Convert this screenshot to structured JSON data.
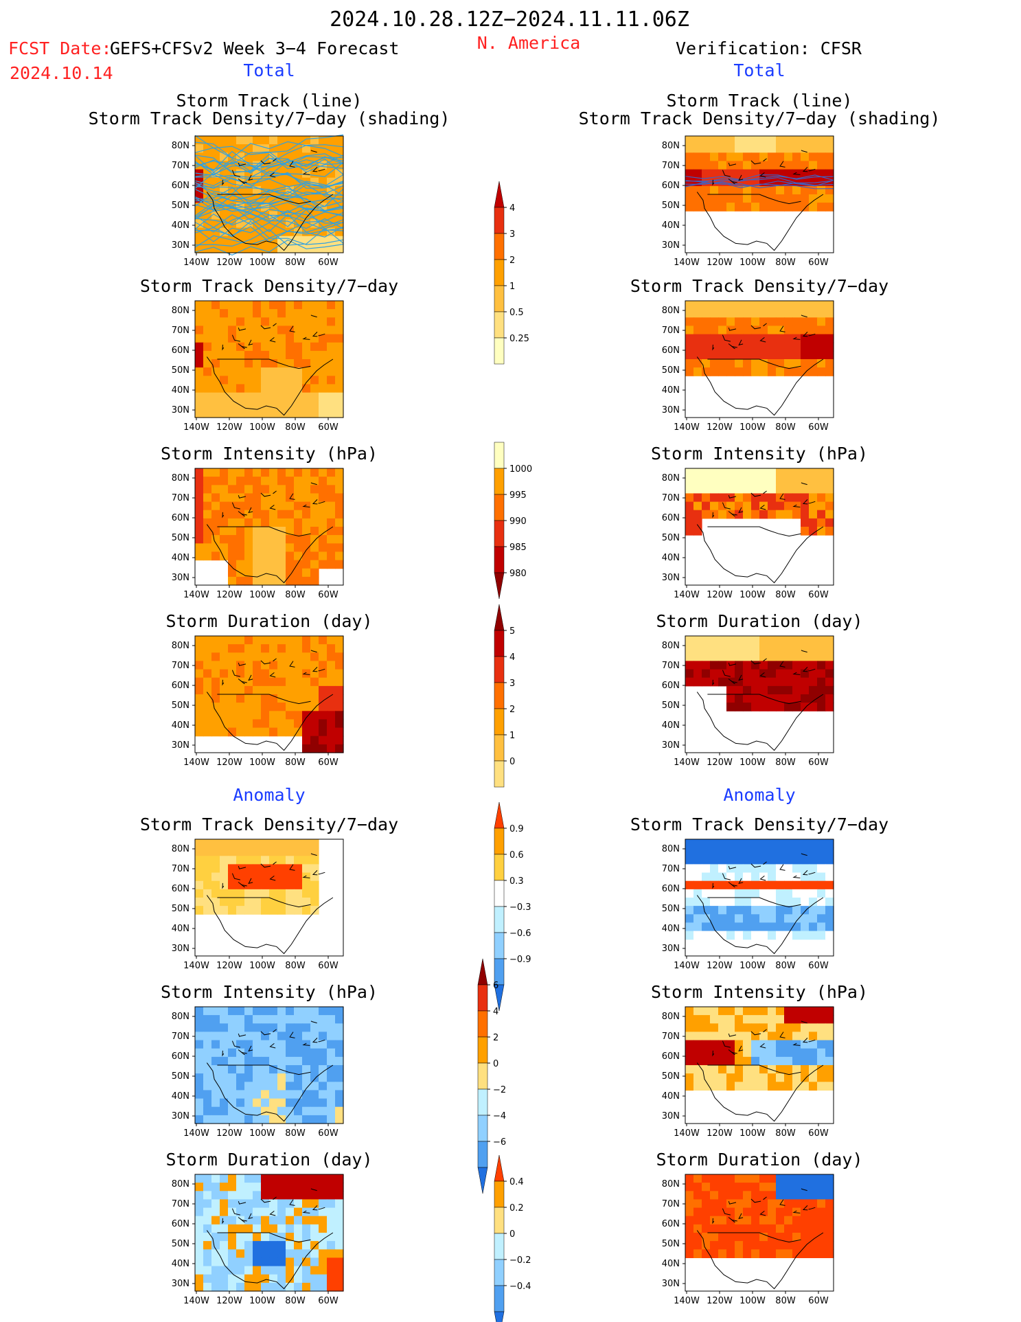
{
  "header": {
    "period": "2024.10.28.12Z−2024.11.11.06Z",
    "fcst_label": "FCST Date:",
    "model": "GEFS+CFSv2 Week 3−4 Forecast",
    "date": "2024.10.14",
    "region": "N. America",
    "verification": "Verification: CFSR"
  },
  "sections": {
    "total": "Total",
    "anomaly": "Anomaly"
  },
  "titles": {
    "track1a": "Storm Track (line)",
    "track1b": "Storm Track Density/7−day (shading)",
    "density": "Storm Track Density/7−day",
    "intensity": "Storm Intensity (hPa)",
    "duration": "Storm Duration (day)"
  },
  "axes": {
    "lat_ticks": [
      "80N",
      "70N",
      "60N",
      "50N",
      "40N",
      "30N"
    ],
    "lon_ticks": [
      "140W",
      "120W",
      "100W",
      "80W",
      "60W"
    ]
  },
  "colors": {
    "yellow_pale": "#ffffc0",
    "yellow": "#ffe080",
    "gold": "#ffc040",
    "orange": "#ffa000",
    "orange_red": "#ff7000",
    "red": "#e83010",
    "dark_red": "#c00000",
    "maroon": "#900000",
    "light_cyan": "#c0f0ff",
    "light_blue": "#90d0ff",
    "mid_blue": "#50a0f0",
    "blue": "#2070e0",
    "storm_line_forecast": "#30a0e0",
    "storm_line_verify": "#4060c0"
  },
  "chart_data": [
    {
      "type": "heatmap",
      "id": "fc-track",
      "panel": "forecast",
      "title": "Storm Track (line) / Storm Track Density/7−day (shading)",
      "colorbar": "density"
    },
    {
      "type": "heatmap",
      "id": "ob-track",
      "panel": "verification",
      "title": "Storm Track (line) / Storm Track Density/7−day (shading)",
      "colorbar": "density"
    },
    {
      "type": "heatmap",
      "id": "fc-density",
      "panel": "forecast",
      "title": "Storm Track Density/7−day",
      "colorbar": "density"
    },
    {
      "type": "heatmap",
      "id": "ob-density",
      "panel": "verification",
      "title": "Storm Track Density/7−day",
      "colorbar": "density"
    },
    {
      "type": "heatmap",
      "id": "fc-intensity",
      "panel": "forecast",
      "title": "Storm Intensity (hPa)",
      "colorbar": "intensity"
    },
    {
      "type": "heatmap",
      "id": "ob-intensity",
      "panel": "verification",
      "title": "Storm Intensity (hPa)",
      "colorbar": "intensity"
    },
    {
      "type": "heatmap",
      "id": "fc-duration",
      "panel": "forecast",
      "title": "Storm Duration (day)",
      "colorbar": "duration"
    },
    {
      "type": "heatmap",
      "id": "ob-duration",
      "panel": "verification",
      "title": "Storm Duration (day)",
      "colorbar": "duration"
    },
    {
      "type": "heatmap",
      "id": "fc-density-anom",
      "panel": "forecast",
      "title": "Storm Track Density/7−day",
      "colorbar": "density_anom"
    },
    {
      "type": "heatmap",
      "id": "ob-density-anom",
      "panel": "verification",
      "title": "Storm Track Density/7−day",
      "colorbar": "density_anom"
    },
    {
      "type": "heatmap",
      "id": "fc-intensity-anom",
      "panel": "forecast",
      "title": "Storm Intensity (hPa)",
      "colorbar": "intensity_anom"
    },
    {
      "type": "heatmap",
      "id": "ob-intensity-anom",
      "panel": "verification",
      "title": "Storm Intensity (hPa)",
      "colorbar": "intensity_anom"
    },
    {
      "type": "heatmap",
      "id": "fc-duration-anom",
      "panel": "forecast",
      "title": "Storm Duration (day)",
      "colorbar": "duration_anom"
    },
    {
      "type": "heatmap",
      "id": "ob-duration-anom",
      "panel": "verification",
      "title": "Storm Duration (day)",
      "colorbar": "duration_anom"
    }
  ],
  "colorbars": {
    "density": {
      "labels": [
        "4",
        "3",
        "2",
        "1",
        "0.5",
        "0.25"
      ],
      "colors": [
        "#c00000",
        "#e83010",
        "#ff7000",
        "#ffa000",
        "#ffc040",
        "#ffe080",
        "#ffffc0"
      ]
    },
    "intensity": {
      "labels": [
        "1000",
        "995",
        "990",
        "985",
        "980"
      ],
      "colors": [
        "#ffffc0",
        "#ffa000",
        "#ff7000",
        "#e83010",
        "#c00000",
        "#900000"
      ]
    },
    "duration": {
      "labels": [
        "5",
        "4",
        "3",
        "2",
        "1",
        "0"
      ],
      "colors": [
        "#900000",
        "#c00000",
        "#e83010",
        "#ff7000",
        "#ffa000",
        "#ffc040",
        "#ffe080"
      ]
    },
    "density_anom": {
      "labels": [
        "0.9",
        "0.6",
        "0.3",
        "−0.3",
        "−0.6",
        "−0.9"
      ],
      "colors": [
        "#ff4000",
        "#ffa000",
        "#ffd040",
        "#ffffff",
        "#c0f0ff",
        "#90d0ff",
        "#50a0f0",
        "#2070e0"
      ]
    },
    "intensity_anom": {
      "labels": [
        "6",
        "4",
        "2",
        "0",
        "−2",
        "−4",
        "−6"
      ],
      "colors": [
        "#900000",
        "#e83010",
        "#ff7000",
        "#ffa000",
        "#ffe080",
        "#c0f0ff",
        "#90d0ff",
        "#50a0f0",
        "#2070e0"
      ]
    },
    "duration_anom": {
      "labels": [
        "0.4",
        "0.2",
        "0",
        "−0.2",
        "−0.4"
      ],
      "colors": [
        "#ff4000",
        "#ffa000",
        "#ffe080",
        "#c0f0ff",
        "#90d0ff",
        "#50a0f0",
        "#2070e0"
      ]
    }
  }
}
